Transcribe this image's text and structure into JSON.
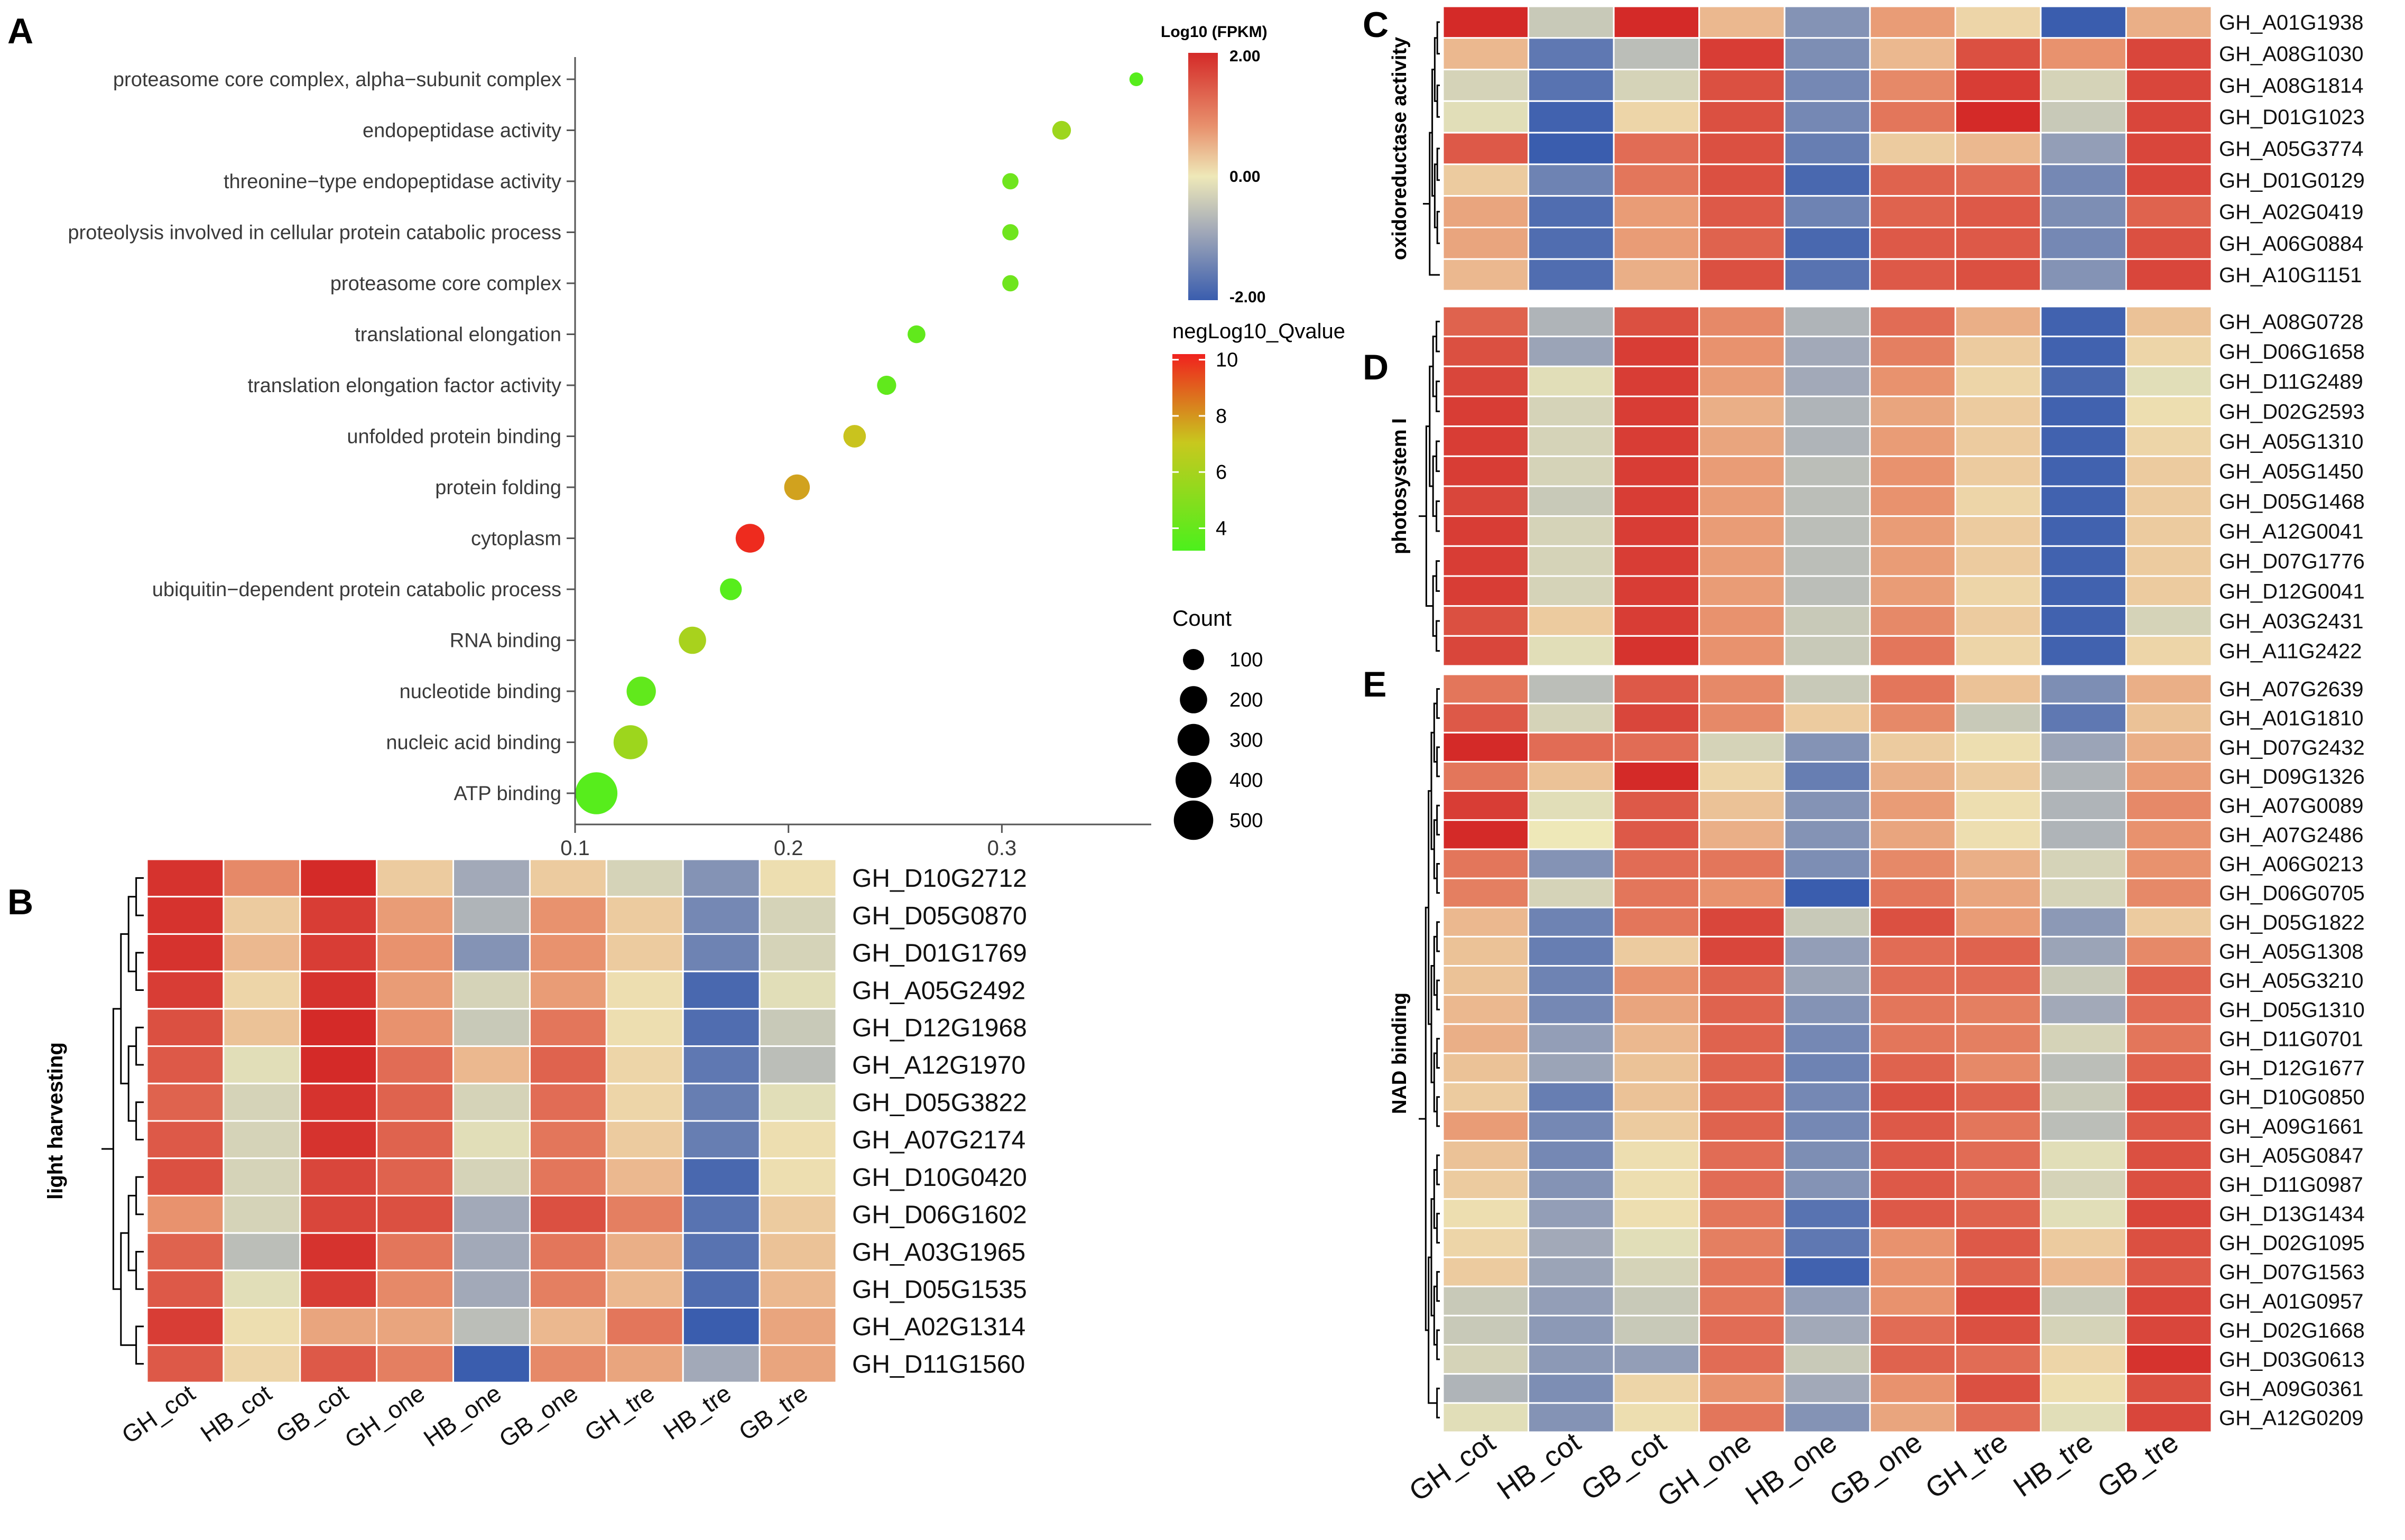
{
  "chart_data": [
    {
      "panel": "A",
      "type": "scatter",
      "title": "",
      "xlabel": "",
      "ylabel": "",
      "xlim": [
        0.1,
        0.37
      ],
      "xticks": [
        "0.1",
        "0.2",
        "0.3"
      ],
      "tick_values": [
        0.1,
        0.2,
        0.3
      ],
      "categories": [
        "proteasome core complex, alpha−subunit complex",
        "endopeptidase activity",
        "threonine−type endopeptidase activity",
        "proteolysis involved in cellular protein catabolic process",
        "proteasome core complex",
        "translational elongation",
        "translation elongation factor activity",
        "unfolded protein binding",
        "protein folding",
        "cytoplasm",
        "ubiquitin−dependent protein catabolic process",
        "RNA binding",
        "nucleotide binding",
        "nucleic acid binding",
        "ATP binding"
      ],
      "x": [
        0.363,
        0.328,
        0.304,
        0.304,
        0.304,
        0.26,
        0.246,
        0.231,
        0.204,
        0.182,
        0.173,
        0.155,
        0.131,
        0.126,
        0.11
      ],
      "qvalue": [
        3.5,
        5.5,
        4.2,
        4.2,
        4.2,
        3.8,
        3.8,
        6.8,
        7.5,
        10.0,
        3.5,
        5.8,
        3.8,
        5.5,
        3.5
      ],
      "count": [
        25,
        70,
        45,
        45,
        45,
        60,
        75,
        120,
        170,
        230,
        110,
        200,
        240,
        350,
        580
      ],
      "colorbar": {
        "title": "negLog10_Qvalue",
        "ticks": [
          "10",
          "8",
          "6",
          "4"
        ],
        "tick_values": [
          10,
          8,
          6,
          4
        ],
        "min": 3.2,
        "max": 10.2
      },
      "size_legend": {
        "title": "Count",
        "labels": [
          "100",
          "200",
          "300",
          "400",
          "500"
        ],
        "values": [
          100,
          200,
          300,
          400,
          500
        ]
      }
    },
    {
      "panel": "B",
      "type": "heatmap",
      "ylabel": "light harvesting",
      "columns": [
        "GH_cot",
        "HB_cot",
        "GB_cot",
        "GH_one",
        "HB_one",
        "GB_one",
        "GH_tre",
        "HB_tre",
        "GB_tre"
      ],
      "rows": [
        "GH_D10G2712",
        "GH_D05G0870",
        "GH_D01G1769",
        "GH_A05G2492",
        "GH_D12G1968",
        "GH_A12G1970",
        "GH_D05G3822",
        "GH_A07G2174",
        "GH_D10G0420",
        "GH_D06G1602",
        "GH_A03G1965",
        "GH_D05G1535",
        "GH_A02G1314",
        "GH_D11G1560"
      ],
      "values": [
        [
          1.9,
          1.0,
          2.0,
          0.3,
          -0.6,
          0.3,
          -0.2,
          -1.0,
          0.1
        ],
        [
          1.9,
          0.3,
          1.8,
          0.8,
          -0.5,
          0.9,
          0.3,
          -1.2,
          -0.2
        ],
        [
          1.9,
          0.5,
          1.8,
          0.9,
          -1.0,
          0.9,
          0.3,
          -1.3,
          -0.2
        ],
        [
          1.8,
          0.2,
          1.9,
          0.8,
          -0.2,
          0.8,
          0.1,
          -1.8,
          -0.1
        ],
        [
          1.6,
          0.4,
          2.1,
          0.9,
          -0.3,
          1.2,
          0.1,
          -1.7,
          -0.3
        ],
        [
          1.5,
          -0.1,
          2.0,
          1.3,
          0.5,
          1.4,
          0.2,
          -1.5,
          -0.4
        ],
        [
          1.4,
          -0.2,
          1.9,
          1.4,
          -0.2,
          1.3,
          0.2,
          -1.4,
          -0.1
        ],
        [
          1.5,
          -0.2,
          1.9,
          1.4,
          -0.1,
          1.2,
          0.3,
          -1.4,
          0.1
        ],
        [
          1.6,
          -0.2,
          1.7,
          1.4,
          -0.2,
          1.2,
          0.5,
          -1.8,
          0.1
        ],
        [
          0.9,
          -0.2,
          1.7,
          1.6,
          -0.6,
          1.6,
          1.1,
          -1.6,
          0.3
        ],
        [
          1.4,
          -0.4,
          1.9,
          1.2,
          -0.6,
          1.2,
          0.6,
          -1.6,
          0.4
        ],
        [
          1.5,
          -0.1,
          1.8,
          1.0,
          -0.6,
          1.1,
          0.5,
          -1.7,
          0.5
        ],
        [
          1.8,
          0.1,
          0.7,
          0.7,
          -0.4,
          0.5,
          1.2,
          -2.0,
          0.7
        ],
        [
          1.5,
          0.2,
          1.5,
          1.1,
          -2.0,
          1.0,
          0.7,
          -0.6,
          0.7
        ]
      ]
    },
    {
      "panel": "C",
      "type": "heatmap",
      "ylabel": "oxidoreductase activity",
      "columns": [
        "GH_cot",
        "HB_cot",
        "GB_cot",
        "GH_one",
        "HB_one",
        "GB_one",
        "GH_tre",
        "HB_tre",
        "GB_tre"
      ],
      "rows": [
        "GH_A01G1938",
        "GH_A08G1030",
        "GH_A08G1814",
        "GH_D01G1023",
        "GH_A05G3774",
        "GH_D01G0129",
        "GH_A02G0419",
        "GH_A06G0884",
        "GH_A10G1151"
      ],
      "values": [
        [
          2.0,
          -0.3,
          2.0,
          0.5,
          -1.0,
          0.8,
          0.2,
          -2.0,
          0.6
        ],
        [
          0.5,
          -1.5,
          -0.4,
          1.8,
          -1.1,
          0.5,
          1.6,
          0.9,
          1.7
        ],
        [
          -0.2,
          -1.6,
          -0.2,
          1.6,
          -1.2,
          1.0,
          1.8,
          -0.2,
          1.7
        ],
        [
          -0.1,
          -1.9,
          0.2,
          1.6,
          -1.2,
          1.2,
          2.0,
          -0.3,
          1.7
        ],
        [
          1.5,
          -2.0,
          1.3,
          1.6,
          -1.4,
          0.3,
          0.5,
          -0.8,
          1.7
        ],
        [
          0.3,
          -1.3,
          1.2,
          1.6,
          -1.8,
          1.4,
          1.3,
          -1.2,
          1.7
        ],
        [
          0.7,
          -1.7,
          0.8,
          1.5,
          -1.3,
          1.4,
          1.5,
          -1.1,
          1.4
        ],
        [
          0.7,
          -1.7,
          0.8,
          1.4,
          -1.8,
          1.5,
          1.5,
          -1.2,
          1.6
        ],
        [
          0.5,
          -1.7,
          0.6,
          1.6,
          -1.6,
          1.5,
          1.6,
          -1.0,
          1.7
        ]
      ]
    },
    {
      "panel": "D",
      "type": "heatmap",
      "ylabel": "photosystem I",
      "columns": [
        "GH_cot",
        "HB_cot",
        "GB_cot",
        "GH_one",
        "HB_one",
        "GB_one",
        "GH_tre",
        "HB_tre",
        "GB_tre"
      ],
      "rows": [
        "GH_A08G0728",
        "GH_D06G1658",
        "GH_D11G2489",
        "GH_D02G2593",
        "GH_A05G1310",
        "GH_A05G1450",
        "GH_D05G1468",
        "GH_A12G0041",
        "GH_D07G1776",
        "GH_D12G0041",
        "GH_A03G2431",
        "GH_A11G2422"
      ],
      "values": [
        [
          1.4,
          -0.5,
          1.6,
          1.0,
          -0.5,
          1.3,
          0.6,
          -1.9,
          0.4
        ],
        [
          1.6,
          -0.7,
          1.8,
          0.9,
          -0.6,
          1.1,
          0.3,
          -1.9,
          0.2
        ],
        [
          1.7,
          -0.1,
          1.8,
          0.8,
          -0.6,
          0.9,
          0.2,
          -1.8,
          -0.1
        ],
        [
          1.8,
          -0.2,
          1.8,
          0.6,
          -0.5,
          0.7,
          0.3,
          -1.9,
          0.1
        ],
        [
          1.8,
          -0.2,
          1.8,
          0.7,
          -0.5,
          0.8,
          0.3,
          -1.9,
          0.2
        ],
        [
          1.8,
          -0.2,
          1.8,
          0.8,
          -0.4,
          0.9,
          0.3,
          -1.9,
          0.3
        ],
        [
          1.7,
          -0.3,
          1.8,
          0.8,
          -0.4,
          0.9,
          0.2,
          -1.9,
          0.3
        ],
        [
          1.8,
          -0.2,
          1.8,
          0.8,
          -0.4,
          0.8,
          0.3,
          -1.9,
          0.3
        ],
        [
          1.8,
          -0.2,
          1.8,
          0.8,
          -0.4,
          0.8,
          0.3,
          -1.9,
          0.3
        ],
        [
          1.8,
          -0.2,
          1.8,
          0.8,
          -0.4,
          0.8,
          0.2,
          -1.9,
          0.3
        ],
        [
          1.6,
          0.3,
          1.8,
          0.9,
          -0.3,
          1.0,
          0.3,
          -1.9,
          -0.2
        ],
        [
          1.7,
          -0.1,
          1.9,
          0.9,
          -0.3,
          1.2,
          0.2,
          -1.9,
          0.2
        ]
      ]
    },
    {
      "panel": "E",
      "type": "heatmap",
      "ylabel": "NAD binding",
      "columns": [
        "GH_cot",
        "HB_cot",
        "GB_cot",
        "GH_one",
        "HB_one",
        "GB_one",
        "GH_tre",
        "HB_tre",
        "GB_tre"
      ],
      "rows": [
        "GH_A07G2639",
        "GH_A01G1810",
        "GH_D07G2432",
        "GH_D09G1326",
        "GH_A07G0089",
        "GH_A07G2486",
        "GH_A06G0213",
        "GH_D06G0705",
        "GH_D05G1822",
        "GH_A05G1308",
        "GH_A05G3210",
        "GH_D05G1310",
        "GH_D11G0701",
        "GH_D12G1677",
        "GH_D10G0850",
        "GH_A09G1661",
        "GH_A05G0847",
        "GH_D11G0987",
        "GH_D13G1434",
        "GH_D02G1095",
        "GH_D07G1563",
        "GH_A01G0957",
        "GH_D02G1668",
        "GH_D03G0613",
        "GH_A09G0361",
        "GH_A12G0209"
      ],
      "values": [
        [
          1.2,
          -0.4,
          1.5,
          1.0,
          -0.3,
          1.2,
          0.4,
          -1.1,
          0.6
        ],
        [
          1.5,
          -0.2,
          1.7,
          1.0,
          0.3,
          1.0,
          -0.3,
          -1.5,
          0.4
        ],
        [
          2.0,
          1.3,
          1.3,
          -0.2,
          -1.0,
          0.3,
          0.1,
          -0.7,
          0.6
        ],
        [
          1.2,
          0.4,
          2.0,
          0.2,
          -1.4,
          0.6,
          0.3,
          -0.5,
          0.8
        ],
        [
          1.8,
          -0.1,
          1.5,
          0.4,
          -1.0,
          0.8,
          0.1,
          -0.5,
          1.0
        ],
        [
          2.0,
          0.0,
          1.5,
          0.6,
          -1.0,
          0.7,
          0.1,
          -0.5,
          0.9
        ],
        [
          1.2,
          -1.0,
          1.3,
          1.2,
          -1.1,
          1.0,
          0.6,
          -0.2,
          0.9
        ],
        [
          1.1,
          -0.2,
          1.2,
          0.9,
          -2.0,
          1.2,
          0.7,
          -0.2,
          1.0
        ],
        [
          0.5,
          -1.3,
          1.2,
          1.7,
          -0.3,
          1.6,
          0.8,
          -0.9,
          0.3
        ],
        [
          0.4,
          -1.4,
          0.3,
          1.7,
          -0.8,
          1.3,
          1.4,
          -0.7,
          1.0
        ],
        [
          0.4,
          -1.3,
          0.9,
          1.4,
          -0.7,
          1.3,
          1.3,
          -0.3,
          1.4
        ],
        [
          0.5,
          -1.2,
          0.7,
          1.4,
          -1.0,
          1.2,
          1.1,
          -0.6,
          1.3
        ],
        [
          0.6,
          -0.8,
          0.5,
          1.4,
          -1.2,
          1.2,
          1.1,
          -0.2,
          1.2
        ],
        [
          0.4,
          -0.7,
          0.4,
          1.4,
          -1.3,
          1.4,
          1.0,
          -0.4,
          1.4
        ],
        [
          0.3,
          -1.4,
          0.4,
          1.4,
          -1.2,
          1.6,
          1.4,
          -0.3,
          1.6
        ],
        [
          0.8,
          -1.2,
          0.3,
          1.4,
          -1.2,
          1.5,
          1.2,
          -0.4,
          1.5
        ],
        [
          0.4,
          -1.2,
          0.1,
          1.3,
          -1.1,
          1.5,
          1.3,
          -0.1,
          1.6
        ],
        [
          0.3,
          -1.0,
          0.1,
          1.3,
          -1.0,
          1.5,
          1.3,
          -0.2,
          1.6
        ],
        [
          0.1,
          -0.8,
          0.1,
          1.2,
          -1.6,
          1.5,
          1.4,
          -0.1,
          1.7
        ],
        [
          0.2,
          -0.6,
          -0.1,
          1.1,
          -1.5,
          0.9,
          1.5,
          0.3,
          1.6
        ],
        [
          0.3,
          -0.7,
          -0.2,
          1.2,
          -1.9,
          0.9,
          1.4,
          0.5,
          1.5
        ],
        [
          -0.3,
          -0.8,
          -0.3,
          1.2,
          -0.8,
          0.9,
          1.7,
          -0.3,
          1.7
        ],
        [
          -0.3,
          -0.9,
          -0.3,
          1.3,
          -0.6,
          1.3,
          1.6,
          -0.2,
          1.7
        ],
        [
          -0.2,
          -0.9,
          -0.8,
          1.3,
          -0.3,
          1.4,
          1.3,
          0.2,
          1.9
        ],
        [
          -0.5,
          -1.1,
          0.2,
          0.9,
          -0.6,
          0.9,
          1.6,
          0.1,
          1.6
        ],
        [
          -0.1,
          -1.0,
          0.1,
          1.2,
          -1.0,
          0.7,
          1.3,
          -0.1,
          1.7
        ]
      ]
    }
  ],
  "legend_fpkm": {
    "title": "Log10 (FPKM)",
    "ticks": [
      "2.00",
      "0.00",
      "-2.00"
    ],
    "tick_values": [
      2,
      0,
      -2
    ]
  },
  "panel_labels": [
    "A",
    "B",
    "C",
    "D",
    "E"
  ],
  "colors": {
    "heat_low": "#3A5DAE",
    "heat_mid_low": "#A2A9B8",
    "heat_mid": "#EEE8B8",
    "heat_mid_high": "#E8926E",
    "heat_high": "#D42A28",
    "q_low": "#4CF01C",
    "q_mid": "#C8C81E",
    "q_high": "#F0211E",
    "dot_axis": "#555555",
    "dendrogram": "#000000"
  }
}
